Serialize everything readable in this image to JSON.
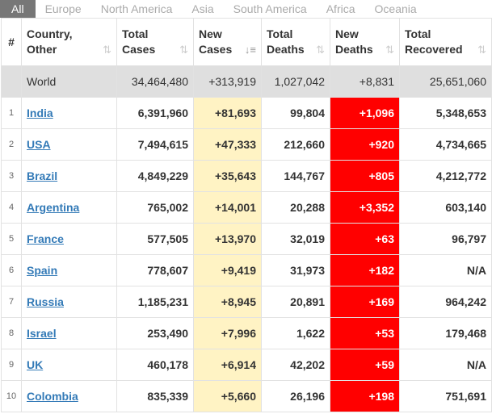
{
  "tabs": [
    {
      "label": "All",
      "active": true
    },
    {
      "label": "Europe",
      "active": false
    },
    {
      "label": "North America",
      "active": false
    },
    {
      "label": "Asia",
      "active": false
    },
    {
      "label": "South America",
      "active": false
    },
    {
      "label": "Africa",
      "active": false
    },
    {
      "label": "Oceania",
      "active": false
    }
  ],
  "columns": [
    {
      "line1": "#",
      "line2": ""
    },
    {
      "line1": "Country,",
      "line2": "Other"
    },
    {
      "line1": "Total",
      "line2": "Cases"
    },
    {
      "line1": "New",
      "line2": "Cases"
    },
    {
      "line1": "Total",
      "line2": "Deaths"
    },
    {
      "line1": "New",
      "line2": "Deaths"
    },
    {
      "line1": "Total",
      "line2": "Recovered"
    }
  ],
  "sort_icon": "sort-arrows-icon",
  "active_sort_icon": "sort-desc-icon",
  "world": {
    "country": "World",
    "total_cases": "34,464,480",
    "new_cases": "+313,919",
    "total_deaths": "1,027,042",
    "new_deaths": "+8,831",
    "total_recovered": "25,651,060"
  },
  "rows": [
    {
      "rank": "1",
      "country": "India",
      "total_cases": "6,391,960",
      "new_cases": "+81,693",
      "total_deaths": "99,804",
      "new_deaths": "+1,096",
      "total_recovered": "5,348,653"
    },
    {
      "rank": "2",
      "country": "USA",
      "total_cases": "7,494,615",
      "new_cases": "+47,333",
      "total_deaths": "212,660",
      "new_deaths": "+920",
      "total_recovered": "4,734,665"
    },
    {
      "rank": "3",
      "country": "Brazil",
      "total_cases": "4,849,229",
      "new_cases": "+35,643",
      "total_deaths": "144,767",
      "new_deaths": "+805",
      "total_recovered": "4,212,772"
    },
    {
      "rank": "4",
      "country": "Argentina",
      "total_cases": "765,002",
      "new_cases": "+14,001",
      "total_deaths": "20,288",
      "new_deaths": "+3,352",
      "total_recovered": "603,140"
    },
    {
      "rank": "5",
      "country": "France",
      "total_cases": "577,505",
      "new_cases": "+13,970",
      "total_deaths": "32,019",
      "new_deaths": "+63",
      "total_recovered": "96,797"
    },
    {
      "rank": "6",
      "country": "Spain",
      "total_cases": "778,607",
      "new_cases": "+9,419",
      "total_deaths": "31,973",
      "new_deaths": "+182",
      "total_recovered": "N/A"
    },
    {
      "rank": "7",
      "country": "Russia",
      "total_cases": "1,185,231",
      "new_cases": "+8,945",
      "total_deaths": "20,891",
      "new_deaths": "+169",
      "total_recovered": "964,242"
    },
    {
      "rank": "8",
      "country": "Israel",
      "total_cases": "253,490",
      "new_cases": "+7,996",
      "total_deaths": "1,622",
      "new_deaths": "+53",
      "total_recovered": "179,468"
    },
    {
      "rank": "9",
      "country": "UK",
      "total_cases": "460,178",
      "new_cases": "+6,914",
      "total_deaths": "42,202",
      "new_deaths": "+59",
      "total_recovered": "N/A"
    },
    {
      "rank": "10",
      "country": "Colombia",
      "total_cases": "835,339",
      "new_cases": "+5,660",
      "total_deaths": "26,196",
      "new_deaths": "+198",
      "total_recovered": "751,691"
    }
  ],
  "colors": {
    "tab_active_bg": "#777777",
    "new_cases_bg": "#fff3c4",
    "new_deaths_bg": "#ff0000",
    "world_row_bg": "#dfdfdf",
    "link": "#337ab7"
  }
}
